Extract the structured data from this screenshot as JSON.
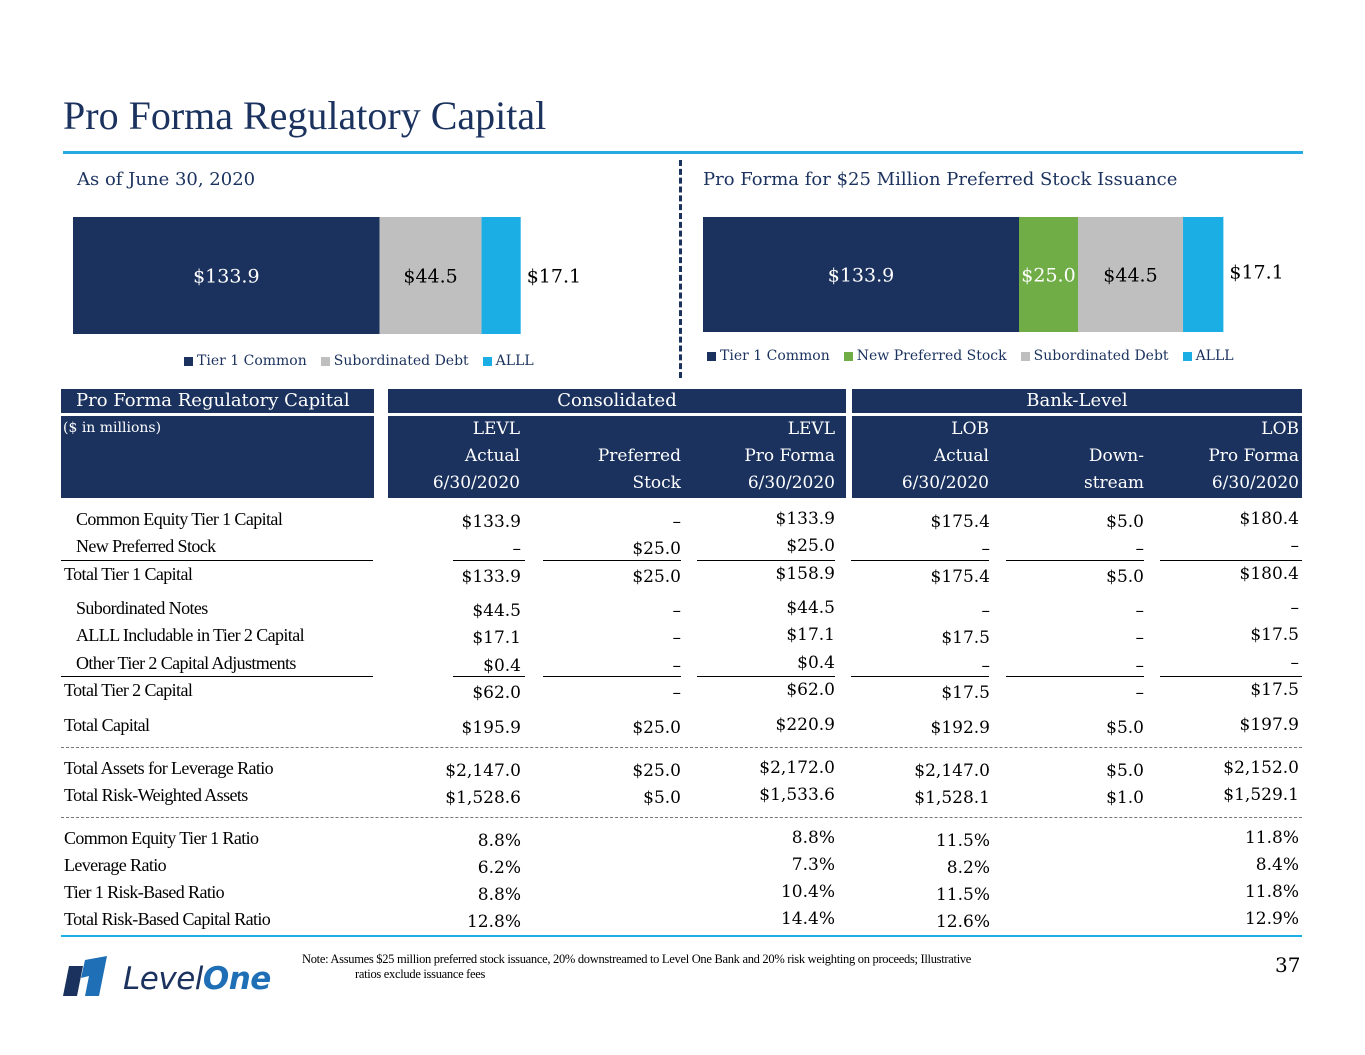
{
  "title": "Pro Forma Regulatory Capital",
  "colors": {
    "tier1": "#1b325e",
    "new_pref": "#70ad47",
    "sub_debt": "#bfbfbf",
    "alll": "#1aaee5"
  },
  "chart_data": [
    {
      "type": "bar",
      "orientation": "horizontal-stacked",
      "title": "As of June 30, 2020",
      "series": [
        {
          "name": "Tier 1 Common",
          "values": [
            133.9
          ],
          "label": "$133.9"
        },
        {
          "name": "Subordinated Debt",
          "values": [
            44.5
          ],
          "label": "$44.5"
        },
        {
          "name": "ALLL",
          "values": [
            17.1
          ],
          "label": "$17.1"
        }
      ],
      "legend": [
        "Tier 1 Common",
        "Subordinated Debt",
        "ALLL"
      ],
      "legend_position": "bottom"
    },
    {
      "type": "bar",
      "orientation": "horizontal-stacked",
      "title": "Pro Forma for $25 Million Preferred Stock Issuance",
      "series": [
        {
          "name": "Tier 1 Common",
          "values": [
            133.9
          ],
          "label": "$133.9"
        },
        {
          "name": "New Preferred Stock",
          "values": [
            25.0
          ],
          "label": "$25.0"
        },
        {
          "name": "Subordinated Debt",
          "values": [
            44.5
          ],
          "label": "$44.5"
        },
        {
          "name": "ALLL",
          "values": [
            17.1
          ],
          "label": "$17.1"
        }
      ],
      "legend": [
        "Tier 1 Common",
        "New Preferred Stock",
        "Subordinated Debt",
        "ALLL"
      ],
      "legend_position": "bottom"
    }
  ],
  "table": {
    "section_title": "Pro Forma Regulatory Capital",
    "units": "($ in millions)",
    "group_consolidated": "Consolidated",
    "group_bank": "Bank-Level",
    "columns": [
      {
        "l1": "LEVL",
        "l2": "Actual",
        "l3": "6/30/2020"
      },
      {
        "l1": "",
        "l2": "Preferred",
        "l3": "Stock"
      },
      {
        "l1": "LEVL",
        "l2": "Pro Forma",
        "l3": "6/30/2020"
      },
      {
        "l1": "LOB",
        "l2": "Actual",
        "l3": "6/30/2020"
      },
      {
        "l1": "",
        "l2": "Down-",
        "l3": "stream"
      },
      {
        "l1": "LOB",
        "l2": "Pro Forma",
        "l3": "6/30/2020"
      }
    ],
    "rows": [
      {
        "label": "Common Equity Tier 1 Capital",
        "values": [
          "$133.9",
          "–",
          "$133.9",
          "$175.4",
          "$5.0",
          "$180.4"
        ]
      },
      {
        "label": "New Preferred Stock",
        "values": [
          "–",
          "$25.0",
          "$25.0",
          "–",
          "–",
          "–"
        ]
      },
      {
        "label": "Total Tier 1 Capital",
        "values": [
          "$133.9",
          "$25.0",
          "$158.9",
          "$175.4",
          "$5.0",
          "$180.4"
        ]
      },
      {
        "label": "Subordinated Notes",
        "values": [
          "$44.5",
          "–",
          "$44.5",
          "–",
          "–",
          "–"
        ]
      },
      {
        "label": "ALLL Includable in Tier 2 Capital",
        "values": [
          "$17.1",
          "–",
          "$17.1",
          "$17.5",
          "–",
          "$17.5"
        ]
      },
      {
        "label": "Other Tier 2 Capital Adjustments",
        "values": [
          "$0.4",
          "–",
          "$0.4",
          "–",
          "–",
          "–"
        ]
      },
      {
        "label": "Total Tier 2 Capital",
        "values": [
          "$62.0",
          "–",
          "$62.0",
          "$17.5",
          "–",
          "$17.5"
        ]
      },
      {
        "label": "Total Capital",
        "values": [
          "$195.9",
          "$25.0",
          "$220.9",
          "$192.9",
          "$5.0",
          "$197.9"
        ]
      },
      {
        "label": "Total Assets for Leverage Ratio",
        "values": [
          "$2,147.0",
          "$25.0",
          "$2,172.0",
          "$2,147.0",
          "$5.0",
          "$2,152.0"
        ]
      },
      {
        "label": "Total Risk-Weighted Assets",
        "values": [
          "$1,528.6",
          "$5.0",
          "$1,533.6",
          "$1,528.1",
          "$1.0",
          "$1,529.1"
        ]
      },
      {
        "label": "Common Equity Tier 1 Ratio",
        "values": [
          "8.8%",
          "",
          "8.8%",
          "11.5%",
          "",
          "11.8%"
        ]
      },
      {
        "label": "Leverage Ratio",
        "values": [
          "6.2%",
          "",
          "7.3%",
          "8.2%",
          "",
          "8.4%"
        ]
      },
      {
        "label": "Tier 1 Risk-Based Ratio",
        "values": [
          "8.8%",
          "",
          "10.4%",
          "11.5%",
          "",
          "11.8%"
        ]
      },
      {
        "label": "Total Risk-Based Capital Ratio",
        "values": [
          "12.8%",
          "",
          "14.4%",
          "12.6%",
          "",
          "12.9%"
        ]
      }
    ]
  },
  "note_line1": "Note: Assumes $25 million preferred stock issuance, 20% downstreamed to Level One Bank and 20% risk weighting on proceeds; Illustrative",
  "note_line2": "ratios exclude issuance fees",
  "page_number": "37",
  "logo": {
    "part1": "Level",
    "part2": "One"
  }
}
